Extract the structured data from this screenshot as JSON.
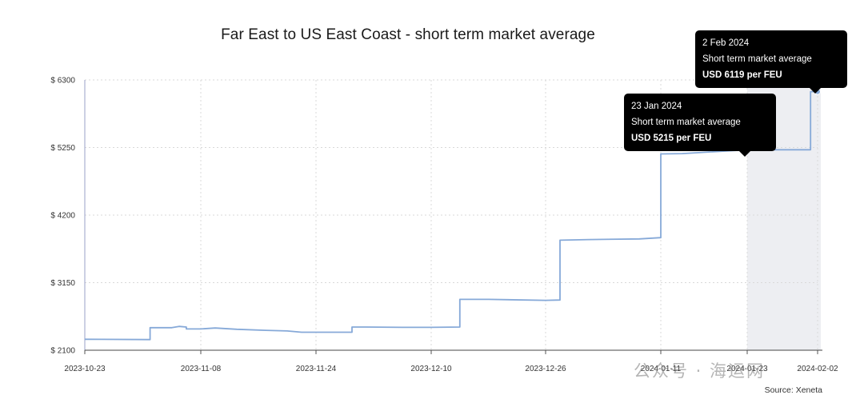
{
  "chart_data": {
    "type": "line",
    "title": "Far East to US East Coast - short term market average",
    "xlabel": "",
    "ylabel": "",
    "ylim": [
      2100,
      6300
    ],
    "y_ticks": [
      "$ 2100",
      "$ 3150",
      "$ 4200",
      "$ 5250",
      "$ 6300"
    ],
    "y_tick_values": [
      2100,
      3150,
      4200,
      5250,
      6300
    ],
    "x_ticks": [
      "2023-10-23",
      "2023-11-08",
      "2023-11-24",
      "2023-12-10",
      "2023-12-26",
      "2024-01-11",
      "2024-01-23",
      "2024-02-02"
    ],
    "x_start": "2023-10-23",
    "x_end": "2024-02-03",
    "grid": true,
    "line_color": "#86a9d8",
    "highlight_band": [
      "2024-01-23",
      "2024-02-02"
    ],
    "series": [
      {
        "x": [
          "2023-10-23",
          "2023-11-01",
          "2023-11-01",
          "2023-11-04",
          "2023-11-05",
          "2023-11-06",
          "2023-11-06",
          "2023-11-08",
          "2023-11-10",
          "2023-11-13",
          "2023-11-17",
          "2023-11-20",
          "2023-11-22",
          "2023-11-29",
          "2023-11-29",
          "2023-12-01",
          "2023-12-06",
          "2023-12-10",
          "2023-12-14",
          "2023-12-14",
          "2023-12-18",
          "2023-12-26",
          "2023-12-28",
          "2023-12-28",
          "2024-01-01",
          "2024-01-08",
          "2024-01-11",
          "2024-01-11",
          "2024-01-14",
          "2024-01-23",
          "2024-02-01",
          "2024-02-01",
          "2024-02-02"
        ],
        "y": [
          2270,
          2265,
          2450,
          2450,
          2470,
          2460,
          2430,
          2430,
          2445,
          2425,
          2410,
          2400,
          2380,
          2380,
          2460,
          2460,
          2455,
          2455,
          2460,
          2890,
          2890,
          2875,
          2880,
          3810,
          3820,
          3830,
          3850,
          5150,
          5155,
          5215,
          5215,
          6119,
          6119
        ]
      }
    ],
    "tooltips": [
      {
        "date": "23 Jan 2024",
        "label": "Short term market average",
        "value": "USD 5215 per FEU"
      },
      {
        "date": "2 Feb 2024",
        "label": "Short term market average",
        "value": "USD 6119 per FEU"
      }
    ],
    "source": "Source: Xeneta"
  },
  "watermark": "公众号 · 海运网"
}
